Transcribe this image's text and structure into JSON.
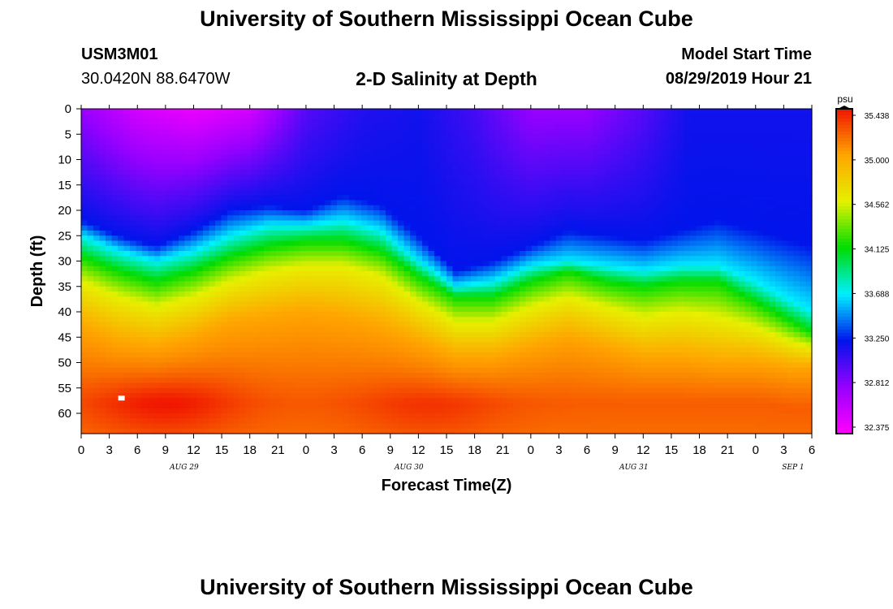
{
  "header": {
    "title": "University of Southern Mississippi Ocean Cube",
    "station_id": "USM3M01",
    "coordinates": "30.0420N 88.6470W",
    "subtitle": "2-D Salinity at Depth",
    "model_start_label": "Model Start Time",
    "model_start_value": "08/29/2019 Hour 21"
  },
  "footer": {
    "title": "University of Southern Mississippi Ocean Cube"
  },
  "chart_data": {
    "type": "heatmap",
    "title": "2-D Salinity at Depth",
    "xlabel": "Forecast Time(Z)",
    "ylabel": "Depth (ft)",
    "units": "psu",
    "x_range_hours": [
      0,
      78
    ],
    "x_ticks": [
      "0",
      "3",
      "6",
      "9",
      "12",
      "15",
      "18",
      "21",
      "0",
      "3",
      "6",
      "9",
      "12",
      "15",
      "18",
      "21",
      "0",
      "3",
      "6",
      "9",
      "12",
      "15",
      "18",
      "21",
      "0",
      "3",
      "6"
    ],
    "date_labels": [
      {
        "label": "AUG 29",
        "hour": 11
      },
      {
        "label": "AUG 30",
        "hour": 35
      },
      {
        "label": "AUG 31",
        "hour": 59
      },
      {
        "label": "SEP 1",
        "hour": 76
      }
    ],
    "y_range_ft": [
      0,
      64
    ],
    "y_ticks": [
      0,
      5,
      10,
      15,
      20,
      25,
      30,
      35,
      40,
      45,
      50,
      55,
      60
    ],
    "colorbar": {
      "min": 32.375,
      "max": 35.438,
      "labels": [
        "35.438",
        "35.000",
        "34.562",
        "34.125",
        "33.688",
        "33.250",
        "32.812",
        "32.375"
      ]
    },
    "isohaline_depths_ft": {
      "hours": [
        0,
        4,
        8,
        12,
        16,
        20,
        24,
        28,
        32,
        36,
        40,
        44,
        48,
        52,
        56,
        60,
        64,
        68,
        72,
        76,
        78
      ],
      "s_33_25": [
        22,
        25,
        27,
        24,
        20,
        19,
        20,
        17,
        19,
        25,
        32,
        30,
        27,
        24,
        25,
        26,
        24,
        22,
        24,
        26,
        27
      ],
      "s_33_69": [
        25,
        28,
        30,
        28,
        25,
        23,
        23,
        22,
        24,
        30,
        35,
        34,
        31,
        30,
        31,
        32,
        31,
        31,
        34,
        38,
        40
      ],
      "s_34_13": [
        29,
        32,
        34,
        32,
        29,
        27,
        26,
        26,
        28,
        33,
        37,
        37,
        34,
        32,
        34,
        35,
        34,
        34,
        38,
        42,
        44
      ],
      "s_34_56": [
        34,
        37,
        39,
        37,
        34,
        32,
        31,
        31,
        33,
        38,
        42,
        42,
        39,
        37,
        39,
        41,
        40,
        41,
        43,
        46,
        47
      ],
      "s_35_00": [
        43,
        46,
        47,
        45,
        42,
        41,
        40,
        41,
        43,
        46,
        49,
        49,
        47,
        45,
        47,
        49,
        49,
        50,
        50,
        51,
        51
      ]
    },
    "surface_salinity": {
      "hours": [
        0,
        6,
        12,
        18,
        24,
        30,
        36,
        42,
        48,
        54,
        60,
        66,
        72,
        78
      ],
      "values": [
        32.8,
        32.55,
        32.45,
        32.55,
        33.0,
        33.15,
        33.2,
        33.05,
        32.8,
        32.8,
        33.0,
        33.25,
        33.3,
        33.35
      ]
    },
    "deep_maxima": [
      {
        "hour": 9,
        "depth": 57,
        "value": 35.44
      },
      {
        "hour": 37,
        "depth": 58,
        "value": 35.35
      }
    ],
    "marker": {
      "hour": 4.3,
      "depth": 57
    }
  }
}
